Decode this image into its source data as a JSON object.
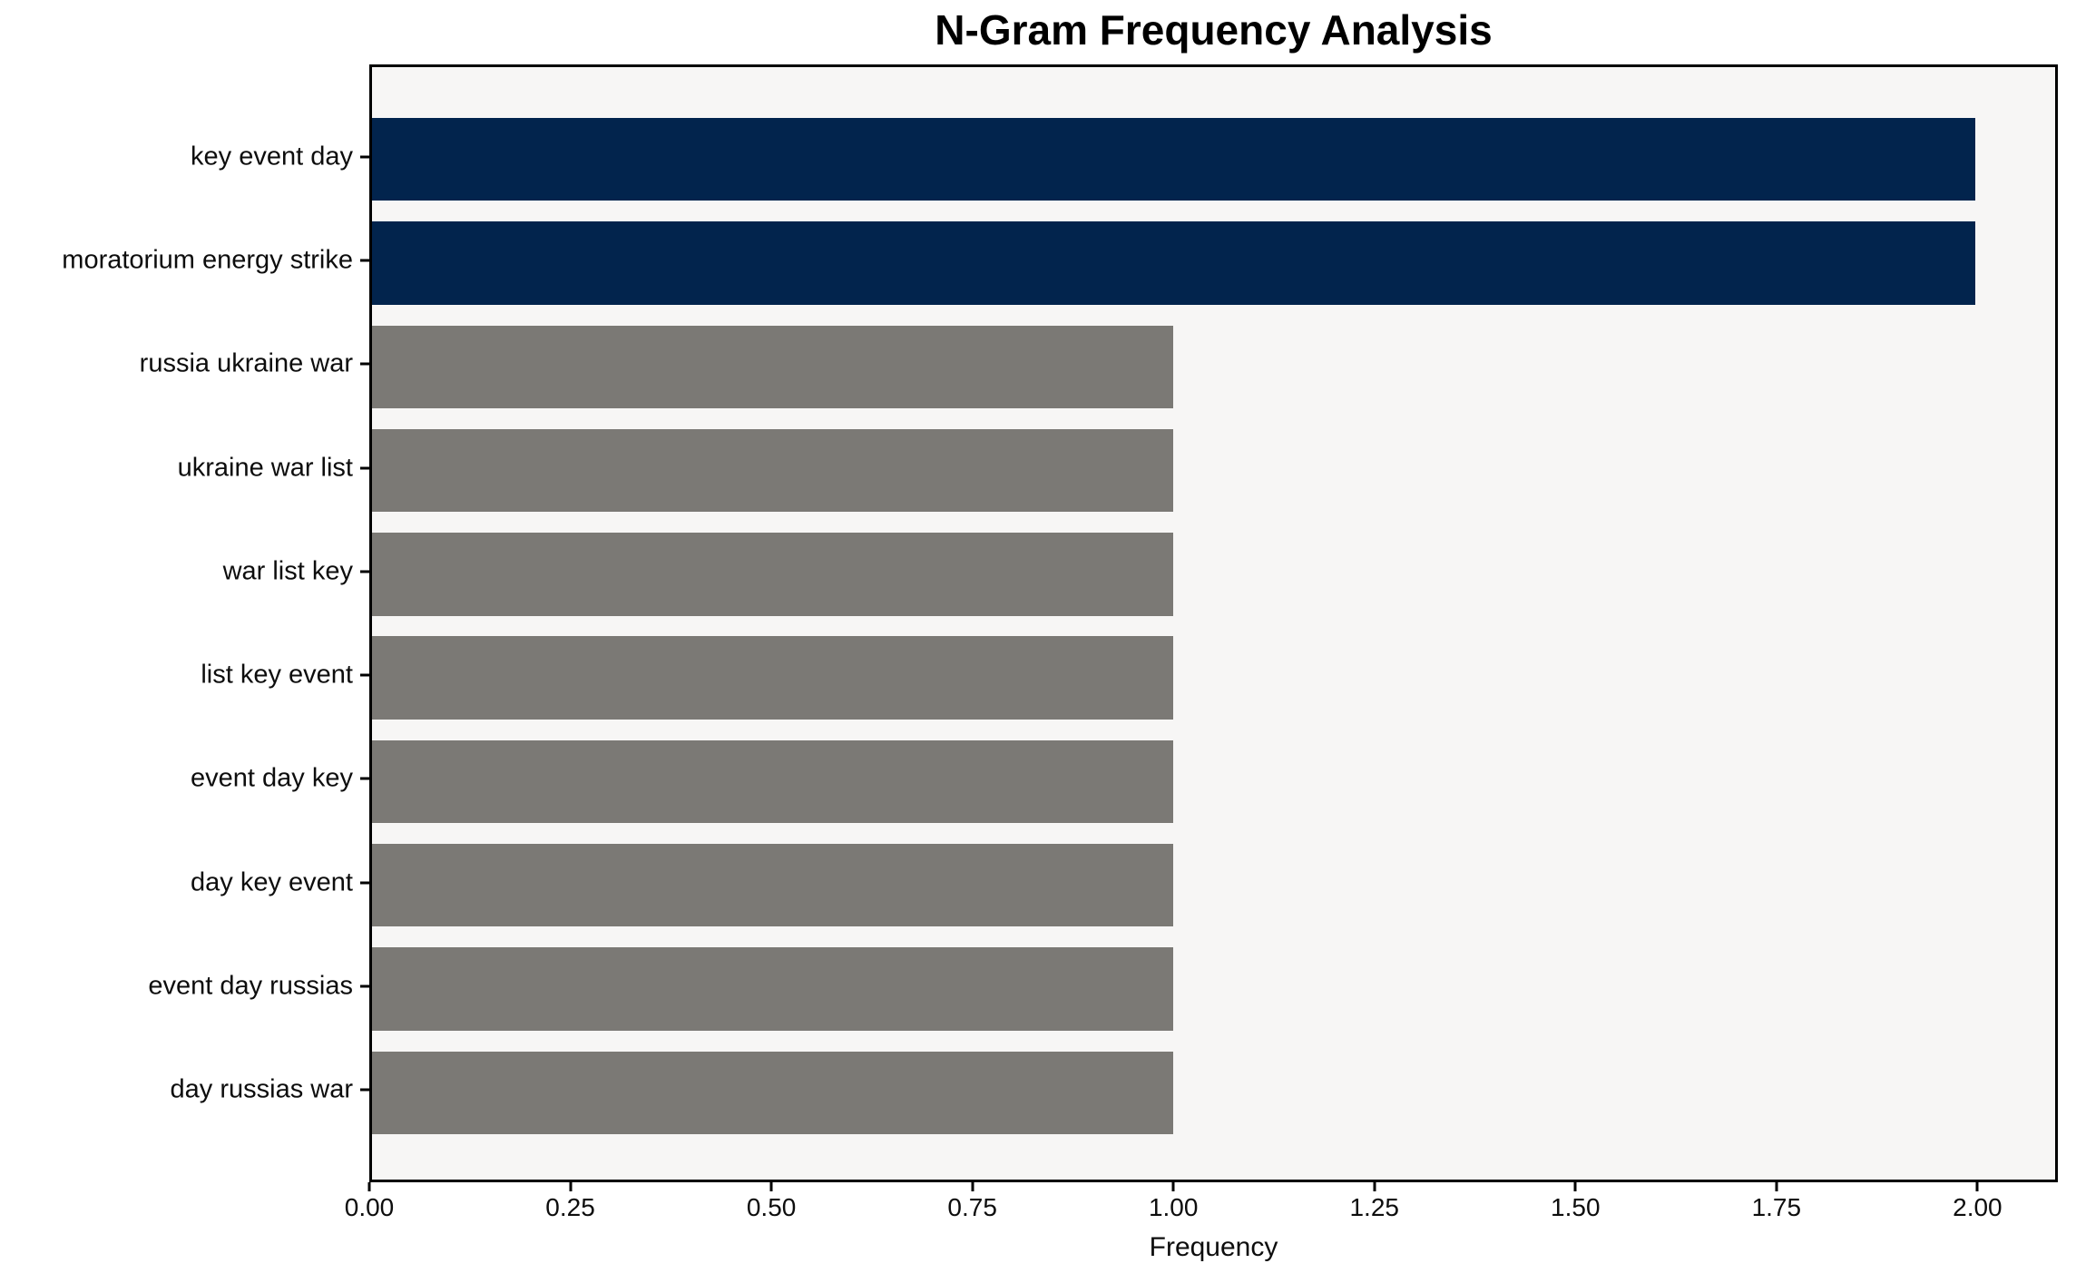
{
  "chart_data": {
    "type": "bar",
    "orientation": "horizontal",
    "title": "N-Gram Frequency Analysis",
    "xlabel": "Frequency",
    "ylabel": "",
    "categories": [
      "key event day",
      "moratorium energy strike",
      "russia ukraine war",
      "ukraine war list",
      "war list key",
      "list key event",
      "event day key",
      "day key event",
      "event day russias",
      "day russias war"
    ],
    "values": [
      2,
      2,
      1,
      1,
      1,
      1,
      1,
      1,
      1,
      1
    ],
    "bar_colors": [
      "#02244d",
      "#02244d",
      "#7b7975",
      "#7b7975",
      "#7b7975",
      "#7b7975",
      "#7b7975",
      "#7b7975",
      "#7b7975",
      "#7b7975"
    ],
    "colors": {
      "highlight": "#02244d",
      "default": "#7b7975",
      "plot_background": "#f7f6f5",
      "figure_background": "#ffffff",
      "axis": "#000000"
    },
    "xlim": [
      0,
      2.1
    ],
    "xtick_values": [
      0,
      0.25,
      0.5,
      0.75,
      1.0,
      1.25,
      1.5,
      1.75,
      2.0
    ],
    "xtick_labels": [
      "0.00",
      "0.25",
      "0.50",
      "0.75",
      "1.00",
      "1.25",
      "1.50",
      "1.75",
      "2.00"
    ],
    "grid": false,
    "legend": null
  }
}
